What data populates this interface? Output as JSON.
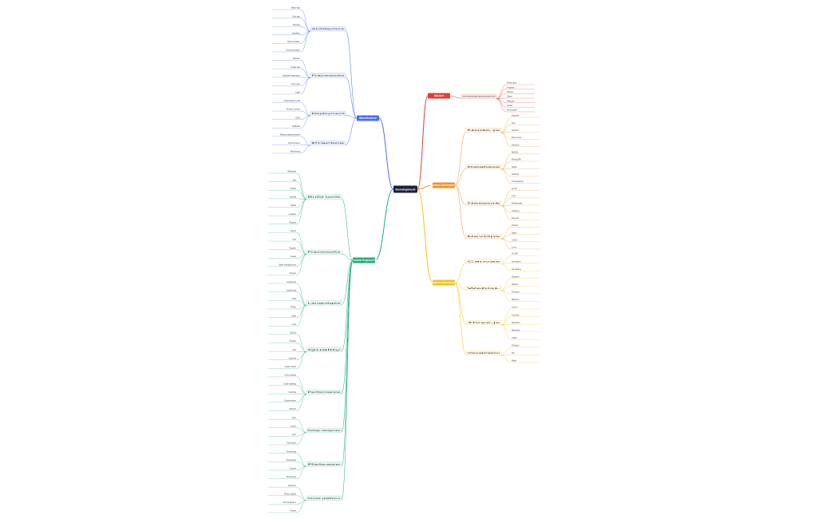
{
  "root": {
    "label": "Development",
    "color": "#1b1f3b"
  },
  "branches": [
    {
      "label": "Mindset",
      "color": "#e0403a",
      "children": [
        {
          "label": "Learn by building real projects, read source code and write notes",
          "children": [
            "Read docs",
            "Practice",
            "Review",
            "Share",
            "Refactor",
            "Iterate",
            "Summarize"
          ]
        }
      ]
    },
    {
      "label": "Microfrontend",
      "color": "#4a6cf0",
      "children": [
        {
          "label": "Architecture",
          "children": [
            "Base app",
            "Sub app",
            "Routing",
            "Sandbox",
            "Style isolation",
            "Communication"
          ]
        },
        {
          "label": "Frameworks",
          "children": [
            "qiankun",
            "single-spa",
            "Module Federation",
            "micro-app",
            "wujie"
          ]
        },
        {
          "label": "Deployment",
          "children": [
            "Independent build",
            "Version control",
            "CDN",
            "Rollback"
          ]
        },
        {
          "label": "Practice",
          "children": [
            "Shared dependencies",
            "Performance",
            "Monitoring"
          ]
        }
      ]
    },
    {
      "label": "Backend Development",
      "color": "#f0912b",
      "children": [
        {
          "label": "Node.js",
          "children": [
            "Express",
            "Koa",
            "NestJS",
            "Event loop",
            "Streams"
          ]
        },
        {
          "label": "Database",
          "children": [
            "MySQL",
            "MongoDB",
            "Redis",
            "Indexes",
            "Transactions"
          ]
        },
        {
          "label": "Network",
          "children": [
            "HTTP",
            "TCP",
            "WebSocket",
            "Caching",
            "Security"
          ]
        },
        {
          "label": "DevOps",
          "children": [
            "Docker",
            "Nginx",
            "CI/CD",
            "Linux"
          ]
        }
      ]
    },
    {
      "label": "Graphics Development",
      "color": "#f2c21b",
      "children": [
        {
          "label": "Canvas",
          "children": [
            "2D API",
            "Animation",
            "Hit testing"
          ]
        },
        {
          "label": "WebGL",
          "children": [
            "Shaders",
            "Buffers",
            "Textures",
            "Matrices"
          ]
        },
        {
          "label": "Three.js",
          "children": [
            "Scene",
            "Camera",
            "Renderer",
            "Materials",
            "Lights"
          ]
        },
        {
          "label": "Visualization",
          "children": [
            "ECharts",
            "D3",
            "Maps"
          ]
        }
      ]
    },
    {
      "label": "Frontend Engineering",
      "color": "#1fae77",
      "children": [
        {
          "label": "Build tools",
          "children": [
            "Webpack",
            "Vite",
            "Rollup",
            "esbuild",
            "Babel",
            "Loaders",
            "Plugins"
          ]
        },
        {
          "label": "Frameworks",
          "children": [
            "React",
            "Vue",
            "Angular",
            "Svelte",
            "State management",
            "Router"
          ]
        },
        {
          "label": "Languages",
          "children": [
            "JavaScript",
            "TypeScript",
            "CSS",
            "HTML",
            "Sass",
            "Less"
          ]
        },
        {
          "label": "Quality",
          "children": [
            "ESLint",
            "Prettier",
            "Jest",
            "Cypress",
            "Code review"
          ]
        },
        {
          "label": "Performance",
          "children": [
            "Lazy loading",
            "Code splitting",
            "Caching",
            "Compression",
            "Metrics"
          ]
        },
        {
          "label": "Package management",
          "children": [
            "npm",
            "pnpm",
            "yarn",
            "Monorepo"
          ]
        },
        {
          "label": "Release",
          "children": [
            "Versioning",
            "Changelog",
            "Canary",
            "Monitoring"
          ]
        },
        {
          "label": "Cross platform",
          "children": [
            "Electron",
            "React Native",
            "Mini programs",
            "Flutter"
          ]
        }
      ]
    }
  ]
}
